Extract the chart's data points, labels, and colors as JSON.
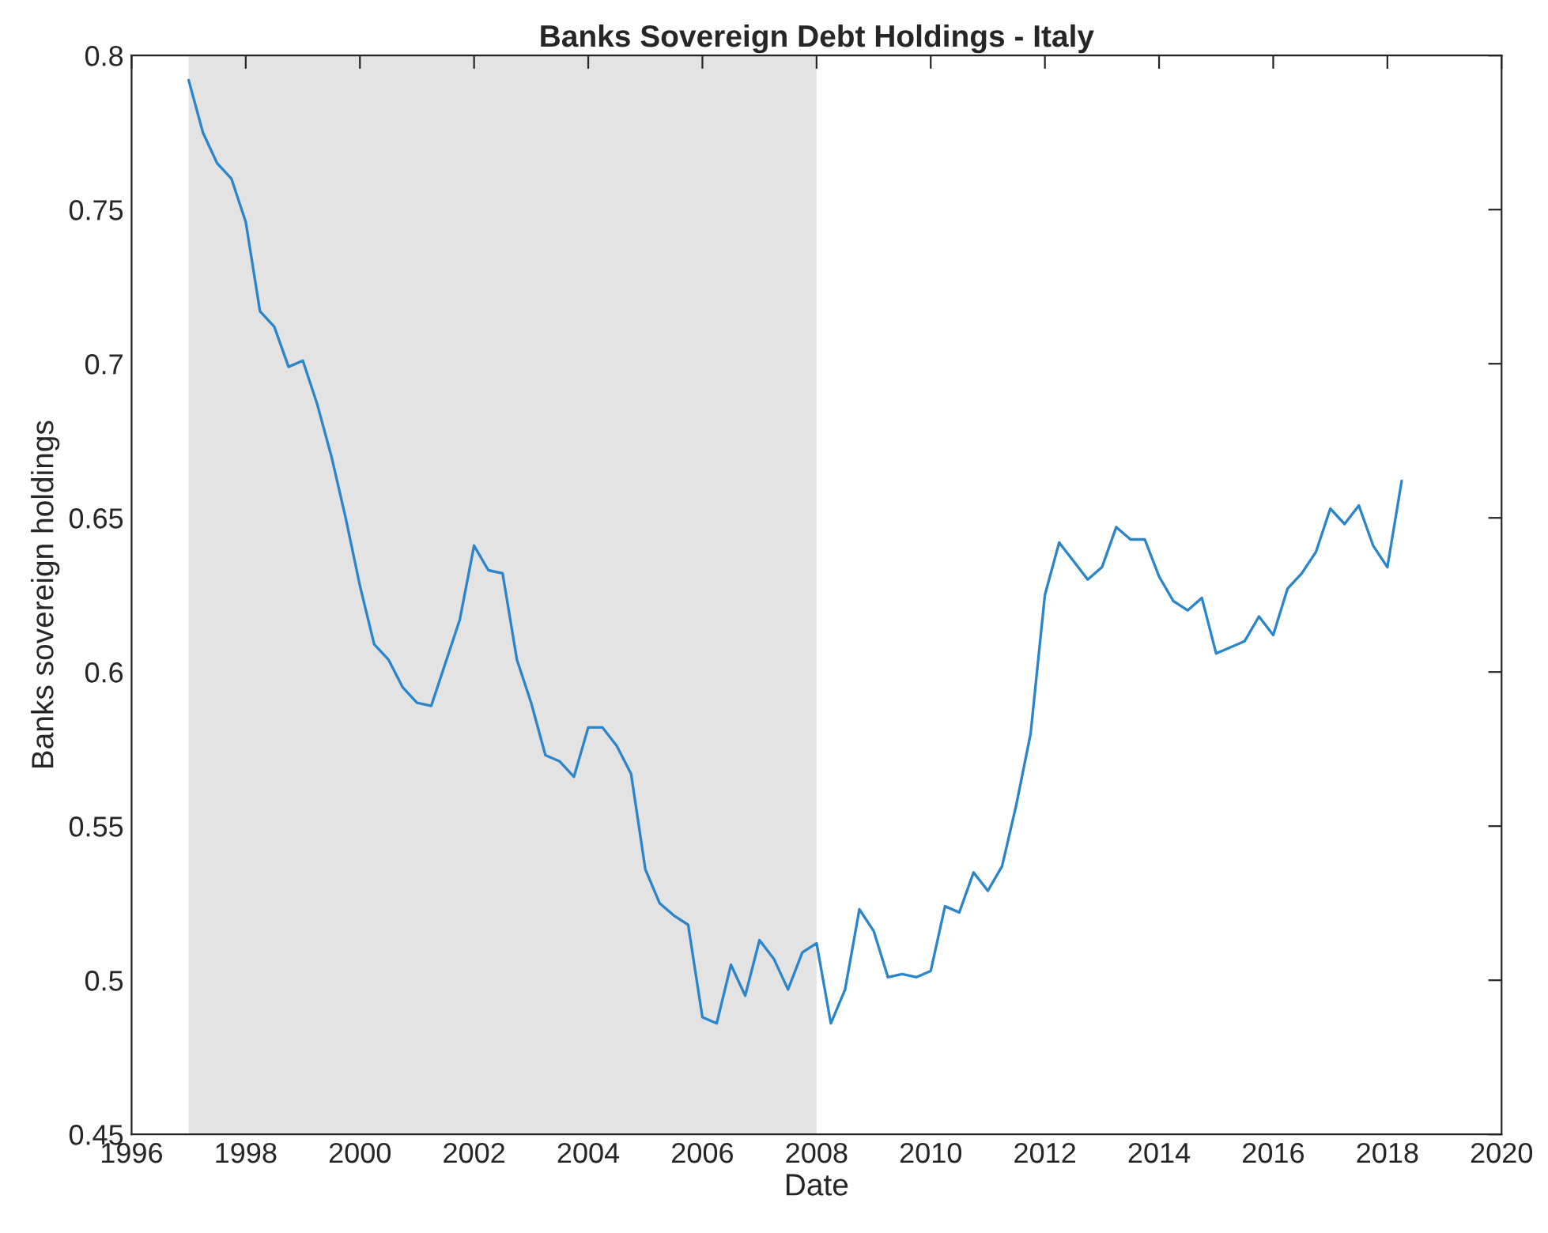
{
  "chart_data": {
    "type": "line",
    "title": "Banks Sovereign Debt Holdings - Italy",
    "xlabel": "Date",
    "ylabel": "Banks sovereign holdings",
    "x": [
      1997.0,
      1997.25,
      1997.5,
      1997.75,
      1998.0,
      1998.25,
      1998.5,
      1998.75,
      1999.0,
      1999.25,
      1999.5,
      1999.75,
      2000.0,
      2000.25,
      2000.5,
      2000.75,
      2001.0,
      2001.25,
      2001.5,
      2001.75,
      2002.0,
      2002.25,
      2002.5,
      2002.75,
      2003.0,
      2003.25,
      2003.5,
      2003.75,
      2004.0,
      2004.25,
      2004.5,
      2004.75,
      2005.0,
      2005.25,
      2005.5,
      2005.75,
      2006.0,
      2006.25,
      2006.5,
      2006.75,
      2007.0,
      2007.25,
      2007.5,
      2007.75,
      2008.0,
      2008.25,
      2008.5,
      2008.75,
      2009.0,
      2009.25,
      2009.5,
      2009.75,
      2010.0,
      2010.25,
      2010.5,
      2010.75,
      2011.0,
      2011.25,
      2011.5,
      2011.75,
      2012.0,
      2012.25,
      2012.5,
      2012.75,
      2013.0,
      2013.25,
      2013.5,
      2013.75,
      2014.0,
      2014.25,
      2014.5,
      2014.75,
      2015.0,
      2015.25,
      2015.5,
      2015.75,
      2016.0,
      2016.25,
      2016.5,
      2016.75,
      2017.0,
      2017.25,
      2017.5,
      2017.75,
      2018.0,
      2018.25
    ],
    "series": [
      {
        "color": "#2b85cb",
        "values": [
          0.792,
          0.775,
          0.765,
          0.76,
          0.746,
          0.717,
          0.712,
          0.699,
          0.701,
          0.687,
          0.67,
          0.65,
          0.628,
          0.609,
          0.604,
          0.595,
          0.59,
          0.589,
          0.603,
          0.617,
          0.641,
          0.633,
          0.632,
          0.604,
          0.59,
          0.573,
          0.571,
          0.566,
          0.582,
          0.582,
          0.576,
          0.567,
          0.536,
          0.525,
          0.521,
          0.518,
          0.488,
          0.486,
          0.505,
          0.495,
          0.513,
          0.507,
          0.497,
          0.509,
          0.512,
          0.486,
          0.497,
          0.523,
          0.516,
          0.501,
          0.502,
          0.501,
          0.503,
          0.524,
          0.522,
          0.535,
          0.529,
          0.537,
          0.557,
          0.58,
          0.625,
          0.642,
          0.636,
          0.63,
          0.634,
          0.647,
          0.643,
          0.643,
          0.631,
          0.623,
          0.62,
          0.624,
          0.606,
          0.608,
          0.61,
          0.618,
          0.612,
          0.627,
          0.632,
          0.639,
          0.653,
          0.648,
          0.654,
          0.641,
          0.634,
          0.662
        ]
      }
    ],
    "xlim": [
      1996,
      2020
    ],
    "xticks": [
      1996,
      1998,
      2000,
      2002,
      2004,
      2006,
      2008,
      2010,
      2012,
      2014,
      2016,
      2018,
      2020
    ],
    "ylim": [
      0.45,
      0.8
    ],
    "yticks": [
      0.45,
      0.5,
      0.55,
      0.6,
      0.65,
      0.7,
      0.75,
      0.8
    ],
    "bands": [
      {
        "axis": "x",
        "from": 1997,
        "to": 2008,
        "color": "#e3e3e3"
      }
    ],
    "grid": false,
    "marker": "none",
    "line_style": "solid"
  }
}
